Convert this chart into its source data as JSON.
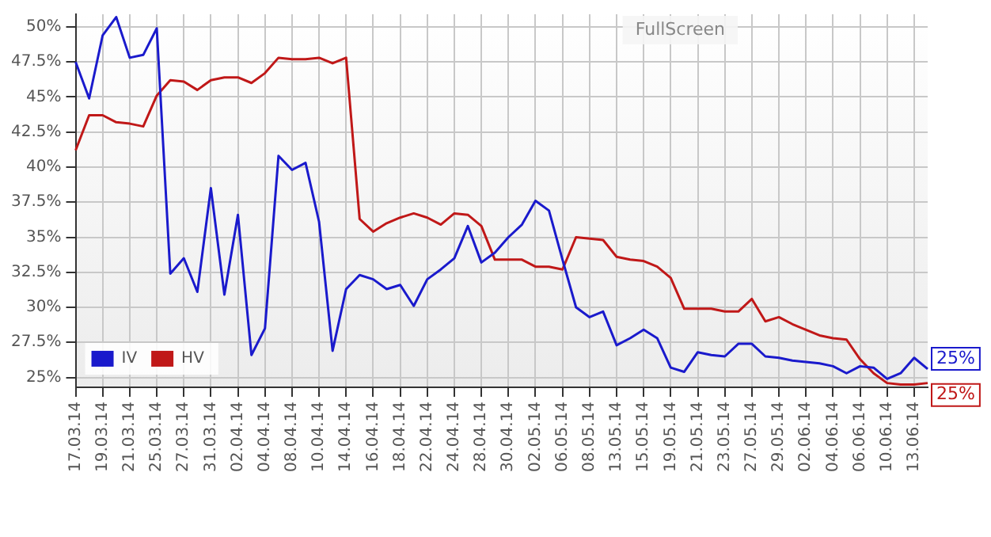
{
  "chart_data": {
    "type": "line",
    "categories": [
      "17.03.14",
      null,
      "19.03.14",
      null,
      "21.03.14",
      null,
      "25.03.14",
      null,
      "27.03.14",
      null,
      "31.03.14",
      null,
      "02.04.14",
      null,
      "04.04.14",
      null,
      "08.04.14",
      null,
      "10.04.14",
      null,
      "14.04.14",
      null,
      "16.04.14",
      null,
      "18.04.14",
      null,
      "22.04.14",
      null,
      "24.04.14",
      null,
      "28.04.14",
      null,
      "30.04.14",
      null,
      "02.05.14",
      null,
      "06.05.14",
      null,
      "08.05.14",
      null,
      "13.05.14",
      null,
      "15.05.14",
      null,
      "19.05.14",
      null,
      "21.05.14",
      null,
      "23.05.14",
      null,
      "27.05.14",
      null,
      "29.05.14",
      null,
      "02.06.14",
      null,
      "04.06.14",
      null,
      "06.06.14",
      null,
      "10.06.14",
      null,
      "13.06.14",
      null
    ],
    "series": [
      {
        "name": "IV",
        "color": "#1a1acc",
        "values": [
          47.5,
          44.9,
          49.4,
          50.7,
          47.8,
          48.0,
          49.9,
          32.4,
          33.5,
          31.1,
          38.5,
          30.9,
          36.6,
          26.6,
          28.5,
          40.8,
          39.8,
          40.3,
          36.1,
          26.9,
          31.3,
          32.3,
          32.0,
          31.3,
          31.6,
          30.1,
          32.0,
          32.7,
          33.5,
          35.8,
          33.2,
          33.9,
          35.0,
          35.9,
          37.6,
          36.9,
          33.4,
          30.0,
          29.3,
          29.7,
          27.3,
          27.8,
          28.4,
          27.8,
          25.7,
          25.4,
          26.8,
          26.6,
          26.5,
          27.4,
          27.4,
          26.5,
          26.4,
          26.2,
          26.1,
          26.0,
          25.8,
          25.3,
          25.8,
          25.7,
          24.9,
          25.3,
          26.4,
          25.6
        ]
      },
      {
        "name": "HV",
        "color": "#c01818",
        "values": [
          41.2,
          43.7,
          43.7,
          43.2,
          43.1,
          42.9,
          45.1,
          46.2,
          46.1,
          45.5,
          46.2,
          46.4,
          46.4,
          46.0,
          46.7,
          47.8,
          47.7,
          47.7,
          47.8,
          47.4,
          47.8,
          36.3,
          35.4,
          36.0,
          36.4,
          36.7,
          36.4,
          35.9,
          36.7,
          36.6,
          35.8,
          33.4,
          33.4,
          33.4,
          32.9,
          32.9,
          32.7,
          35.0,
          34.9,
          34.8,
          33.6,
          33.4,
          33.3,
          32.9,
          32.1,
          29.9,
          29.9,
          29.9,
          29.7,
          29.7,
          30.6,
          29.0,
          29.3,
          28.8,
          28.4,
          28.0,
          27.8,
          27.7,
          26.3,
          25.3,
          24.6,
          24.5,
          24.5,
          24.6
        ]
      }
    ],
    "ylim": [
      24.3,
      50.9
    ],
    "yticks": [
      {
        "value": 25,
        "label": "25%"
      },
      {
        "value": 27.5,
        "label": "27.5%"
      },
      {
        "value": 30,
        "label": "30%"
      },
      {
        "value": 32.5,
        "label": "32.5%"
      },
      {
        "value": 35,
        "label": "35%"
      },
      {
        "value": 37.5,
        "label": "37.5%"
      },
      {
        "value": 40,
        "label": "40%"
      },
      {
        "value": 42.5,
        "label": "42.5%"
      },
      {
        "value": 45,
        "label": "45%"
      },
      {
        "value": 47.5,
        "label": "47.5%"
      },
      {
        "value": 50,
        "label": "50%"
      }
    ],
    "grid": true,
    "legend": "bottom left",
    "marker": "none",
    "line_style": "solid",
    "annotations": [
      "FullScreen",
      "25%",
      "25%"
    ]
  }
}
